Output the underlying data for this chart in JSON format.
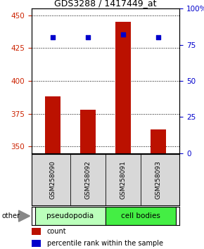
{
  "title": "GDS3288 / 1417449_at",
  "samples": [
    "GSM258090",
    "GSM258092",
    "GSM258091",
    "GSM258093"
  ],
  "counts": [
    388,
    378,
    445,
    363
  ],
  "percentiles": [
    80,
    80,
    82,
    80
  ],
  "ylim_left": [
    345,
    455
  ],
  "ylim_right": [
    0,
    100
  ],
  "yticks_left": [
    350,
    375,
    400,
    425,
    450
  ],
  "yticks_right": [
    0,
    25,
    50,
    75,
    100
  ],
  "ytick_labels_right": [
    "0",
    "25",
    "50",
    "75",
    "100%"
  ],
  "bar_color": "#bb1100",
  "dot_color": "#0000cc",
  "groups": [
    {
      "label": "pseudopodia",
      "color": "#bbffbb",
      "indices": [
        0,
        1
      ]
    },
    {
      "label": "cell bodies",
      "color": "#44ee44",
      "indices": [
        2,
        3
      ]
    }
  ],
  "other_label": "other",
  "legend_count_color": "#bb1100",
  "legend_pct_color": "#0000cc",
  "bar_width": 0.45,
  "background_color": "#ffffff"
}
